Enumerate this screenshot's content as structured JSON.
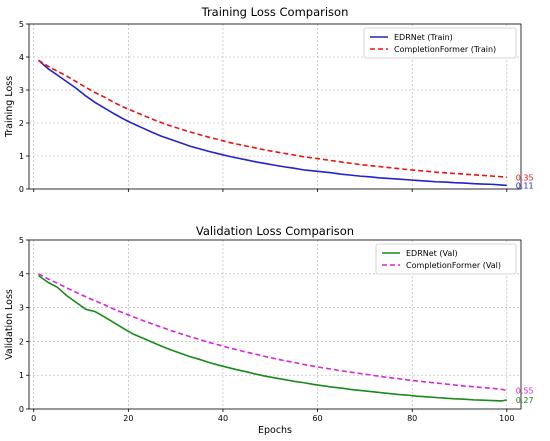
{
  "chart_data": [
    {
      "type": "line",
      "title": "Training Loss Comparison",
      "xlabel": "",
      "ylabel": "Training Loss",
      "xlim": [
        -1,
        103
      ],
      "ylim": [
        0,
        5
      ],
      "xticks": [
        0,
        20,
        40,
        60,
        80,
        100
      ],
      "show_xtick_labels": false,
      "yticks": [
        0,
        1,
        2,
        3,
        4,
        5
      ],
      "grid": true,
      "legend_position": "top-right",
      "series": [
        {
          "name": "EDRNet (Train)",
          "color": "#2222cc",
          "style": "solid",
          "points": [
            [
              1,
              3.9
            ],
            [
              3,
              3.65
            ],
            [
              5,
              3.45
            ],
            [
              7,
              3.25
            ],
            [
              9,
              3.05
            ],
            [
              11,
              2.82
            ],
            [
              13,
              2.62
            ],
            [
              15,
              2.45
            ],
            [
              17,
              2.28
            ],
            [
              19,
              2.12
            ],
            [
              21,
              1.98
            ],
            [
              23,
              1.85
            ],
            [
              25,
              1.72
            ],
            [
              27,
              1.6
            ],
            [
              29,
              1.5
            ],
            [
              31,
              1.4
            ],
            [
              33,
              1.3
            ],
            [
              35,
              1.22
            ],
            [
              37,
              1.14
            ],
            [
              39,
              1.07
            ],
            [
              41,
              1.0
            ],
            [
              43,
              0.94
            ],
            [
              45,
              0.88
            ],
            [
              47,
              0.82
            ],
            [
              49,
              0.77
            ],
            [
              51,
              0.72
            ],
            [
              53,
              0.67
            ],
            [
              55,
              0.63
            ],
            [
              57,
              0.58
            ],
            [
              59,
              0.55
            ],
            [
              61,
              0.52
            ],
            [
              63,
              0.49
            ],
            [
              65,
              0.45
            ],
            [
              67,
              0.42
            ],
            [
              69,
              0.39
            ],
            [
              71,
              0.37
            ],
            [
              73,
              0.34
            ],
            [
              75,
              0.32
            ],
            [
              77,
              0.3
            ],
            [
              79,
              0.28
            ],
            [
              81,
              0.26
            ],
            [
              83,
              0.24
            ],
            [
              85,
              0.22
            ],
            [
              87,
              0.21
            ],
            [
              89,
              0.19
            ],
            [
              91,
              0.18
            ],
            [
              93,
              0.16
            ],
            [
              95,
              0.15
            ],
            [
              97,
              0.14
            ],
            [
              99,
              0.12
            ],
            [
              100,
              0.11
            ]
          ],
          "end_label": "0.11"
        },
        {
          "name": "CompletionFormer (Train)",
          "color": "#ee1111",
          "style": "dashed",
          "points": [
            [
              1,
              3.9
            ],
            [
              3,
              3.72
            ],
            [
              5,
              3.57
            ],
            [
              7,
              3.42
            ],
            [
              9,
              3.25
            ],
            [
              11,
              3.08
            ],
            [
              13,
              2.92
            ],
            [
              15,
              2.78
            ],
            [
              17,
              2.62
            ],
            [
              19,
              2.48
            ],
            [
              21,
              2.36
            ],
            [
              23,
              2.24
            ],
            [
              25,
              2.12
            ],
            [
              27,
              2.01
            ],
            [
              29,
              1.91
            ],
            [
              31,
              1.82
            ],
            [
              33,
              1.73
            ],
            [
              35,
              1.65
            ],
            [
              37,
              1.57
            ],
            [
              39,
              1.5
            ],
            [
              41,
              1.42
            ],
            [
              43,
              1.36
            ],
            [
              45,
              1.3
            ],
            [
              47,
              1.24
            ],
            [
              49,
              1.18
            ],
            [
              51,
              1.13
            ],
            [
              53,
              1.08
            ],
            [
              55,
              1.03
            ],
            [
              57,
              0.98
            ],
            [
              59,
              0.94
            ],
            [
              61,
              0.9
            ],
            [
              63,
              0.86
            ],
            [
              65,
              0.82
            ],
            [
              67,
              0.78
            ],
            [
              69,
              0.74
            ],
            [
              71,
              0.71
            ],
            [
              73,
              0.68
            ],
            [
              75,
              0.65
            ],
            [
              77,
              0.62
            ],
            [
              79,
              0.59
            ],
            [
              81,
              0.56
            ],
            [
              83,
              0.54
            ],
            [
              85,
              0.51
            ],
            [
              87,
              0.49
            ],
            [
              89,
              0.47
            ],
            [
              91,
              0.45
            ],
            [
              93,
              0.43
            ],
            [
              95,
              0.41
            ],
            [
              97,
              0.39
            ],
            [
              99,
              0.37
            ],
            [
              100,
              0.35
            ]
          ],
          "end_label": "0.35"
        }
      ]
    },
    {
      "type": "line",
      "title": "Validation Loss Comparison",
      "xlabel": "Epochs",
      "ylabel": "Validation Loss",
      "xlim": [
        -1,
        103
      ],
      "ylim": [
        0,
        5
      ],
      "xticks": [
        0,
        20,
        40,
        60,
        80,
        100
      ],
      "show_xtick_labels": true,
      "yticks": [
        0,
        1,
        2,
        3,
        4,
        5
      ],
      "grid": true,
      "legend_position": "top-right",
      "series": [
        {
          "name": "EDRNet (Val)",
          "color": "#1a8a1a",
          "style": "solid",
          "points": [
            [
              1,
              3.95
            ],
            [
              3,
              3.75
            ],
            [
              5,
              3.6
            ],
            [
              7,
              3.35
            ],
            [
              9,
              3.15
            ],
            [
              11,
              2.95
            ],
            [
              13,
              2.88
            ],
            [
              15,
              2.72
            ],
            [
              17,
              2.55
            ],
            [
              19,
              2.38
            ],
            [
              21,
              2.22
            ],
            [
              23,
              2.1
            ],
            [
              25,
              1.98
            ],
            [
              27,
              1.86
            ],
            [
              29,
              1.75
            ],
            [
              31,
              1.65
            ],
            [
              33,
              1.55
            ],
            [
              35,
              1.47
            ],
            [
              37,
              1.38
            ],
            [
              39,
              1.3
            ],
            [
              41,
              1.23
            ],
            [
              43,
              1.16
            ],
            [
              45,
              1.1
            ],
            [
              47,
              1.03
            ],
            [
              49,
              0.97
            ],
            [
              51,
              0.92
            ],
            [
              53,
              0.87
            ],
            [
              55,
              0.82
            ],
            [
              57,
              0.78
            ],
            [
              59,
              0.73
            ],
            [
              61,
              0.69
            ],
            [
              63,
              0.65
            ],
            [
              65,
              0.62
            ],
            [
              67,
              0.58
            ],
            [
              69,
              0.55
            ],
            [
              71,
              0.52
            ],
            [
              73,
              0.49
            ],
            [
              75,
              0.46
            ],
            [
              77,
              0.43
            ],
            [
              79,
              0.41
            ],
            [
              81,
              0.38
            ],
            [
              83,
              0.36
            ],
            [
              85,
              0.34
            ],
            [
              87,
              0.32
            ],
            [
              89,
              0.3
            ],
            [
              91,
              0.29
            ],
            [
              93,
              0.27
            ],
            [
              95,
              0.26
            ],
            [
              97,
              0.25
            ],
            [
              99,
              0.24
            ],
            [
              100,
              0.27
            ]
          ],
          "end_label": "0.27"
        },
        {
          "name": "CompletionFormer (Val)",
          "color": "#dd22dd",
          "style": "dashed",
          "points": [
            [
              1,
              4.0
            ],
            [
              3,
              3.85
            ],
            [
              5,
              3.72
            ],
            [
              7,
              3.58
            ],
            [
              9,
              3.45
            ],
            [
              11,
              3.32
            ],
            [
              13,
              3.2
            ],
            [
              15,
              3.08
            ],
            [
              17,
              2.95
            ],
            [
              19,
              2.84
            ],
            [
              21,
              2.73
            ],
            [
              23,
              2.62
            ],
            [
              25,
              2.52
            ],
            [
              27,
              2.42
            ],
            [
              29,
              2.32
            ],
            [
              31,
              2.23
            ],
            [
              33,
              2.14
            ],
            [
              35,
              2.06
            ],
            [
              37,
              1.97
            ],
            [
              39,
              1.9
            ],
            [
              41,
              1.82
            ],
            [
              43,
              1.75
            ],
            [
              45,
              1.68
            ],
            [
              47,
              1.62
            ],
            [
              49,
              1.55
            ],
            [
              51,
              1.49
            ],
            [
              53,
              1.43
            ],
            [
              55,
              1.38
            ],
            [
              57,
              1.32
            ],
            [
              59,
              1.27
            ],
            [
              61,
              1.22
            ],
            [
              63,
              1.18
            ],
            [
              65,
              1.13
            ],
            [
              67,
              1.09
            ],
            [
              69,
              1.05
            ],
            [
              71,
              1.01
            ],
            [
              73,
              0.97
            ],
            [
              75,
              0.93
            ],
            [
              77,
              0.9
            ],
            [
              79,
              0.86
            ],
            [
              81,
              0.83
            ],
            [
              83,
              0.8
            ],
            [
              85,
              0.77
            ],
            [
              87,
              0.74
            ],
            [
              89,
              0.71
            ],
            [
              91,
              0.68
            ],
            [
              93,
              0.66
            ],
            [
              95,
              0.63
            ],
            [
              97,
              0.61
            ],
            [
              99,
              0.58
            ],
            [
              100,
              0.55
            ]
          ],
          "end_label": "0.55"
        }
      ]
    }
  ]
}
